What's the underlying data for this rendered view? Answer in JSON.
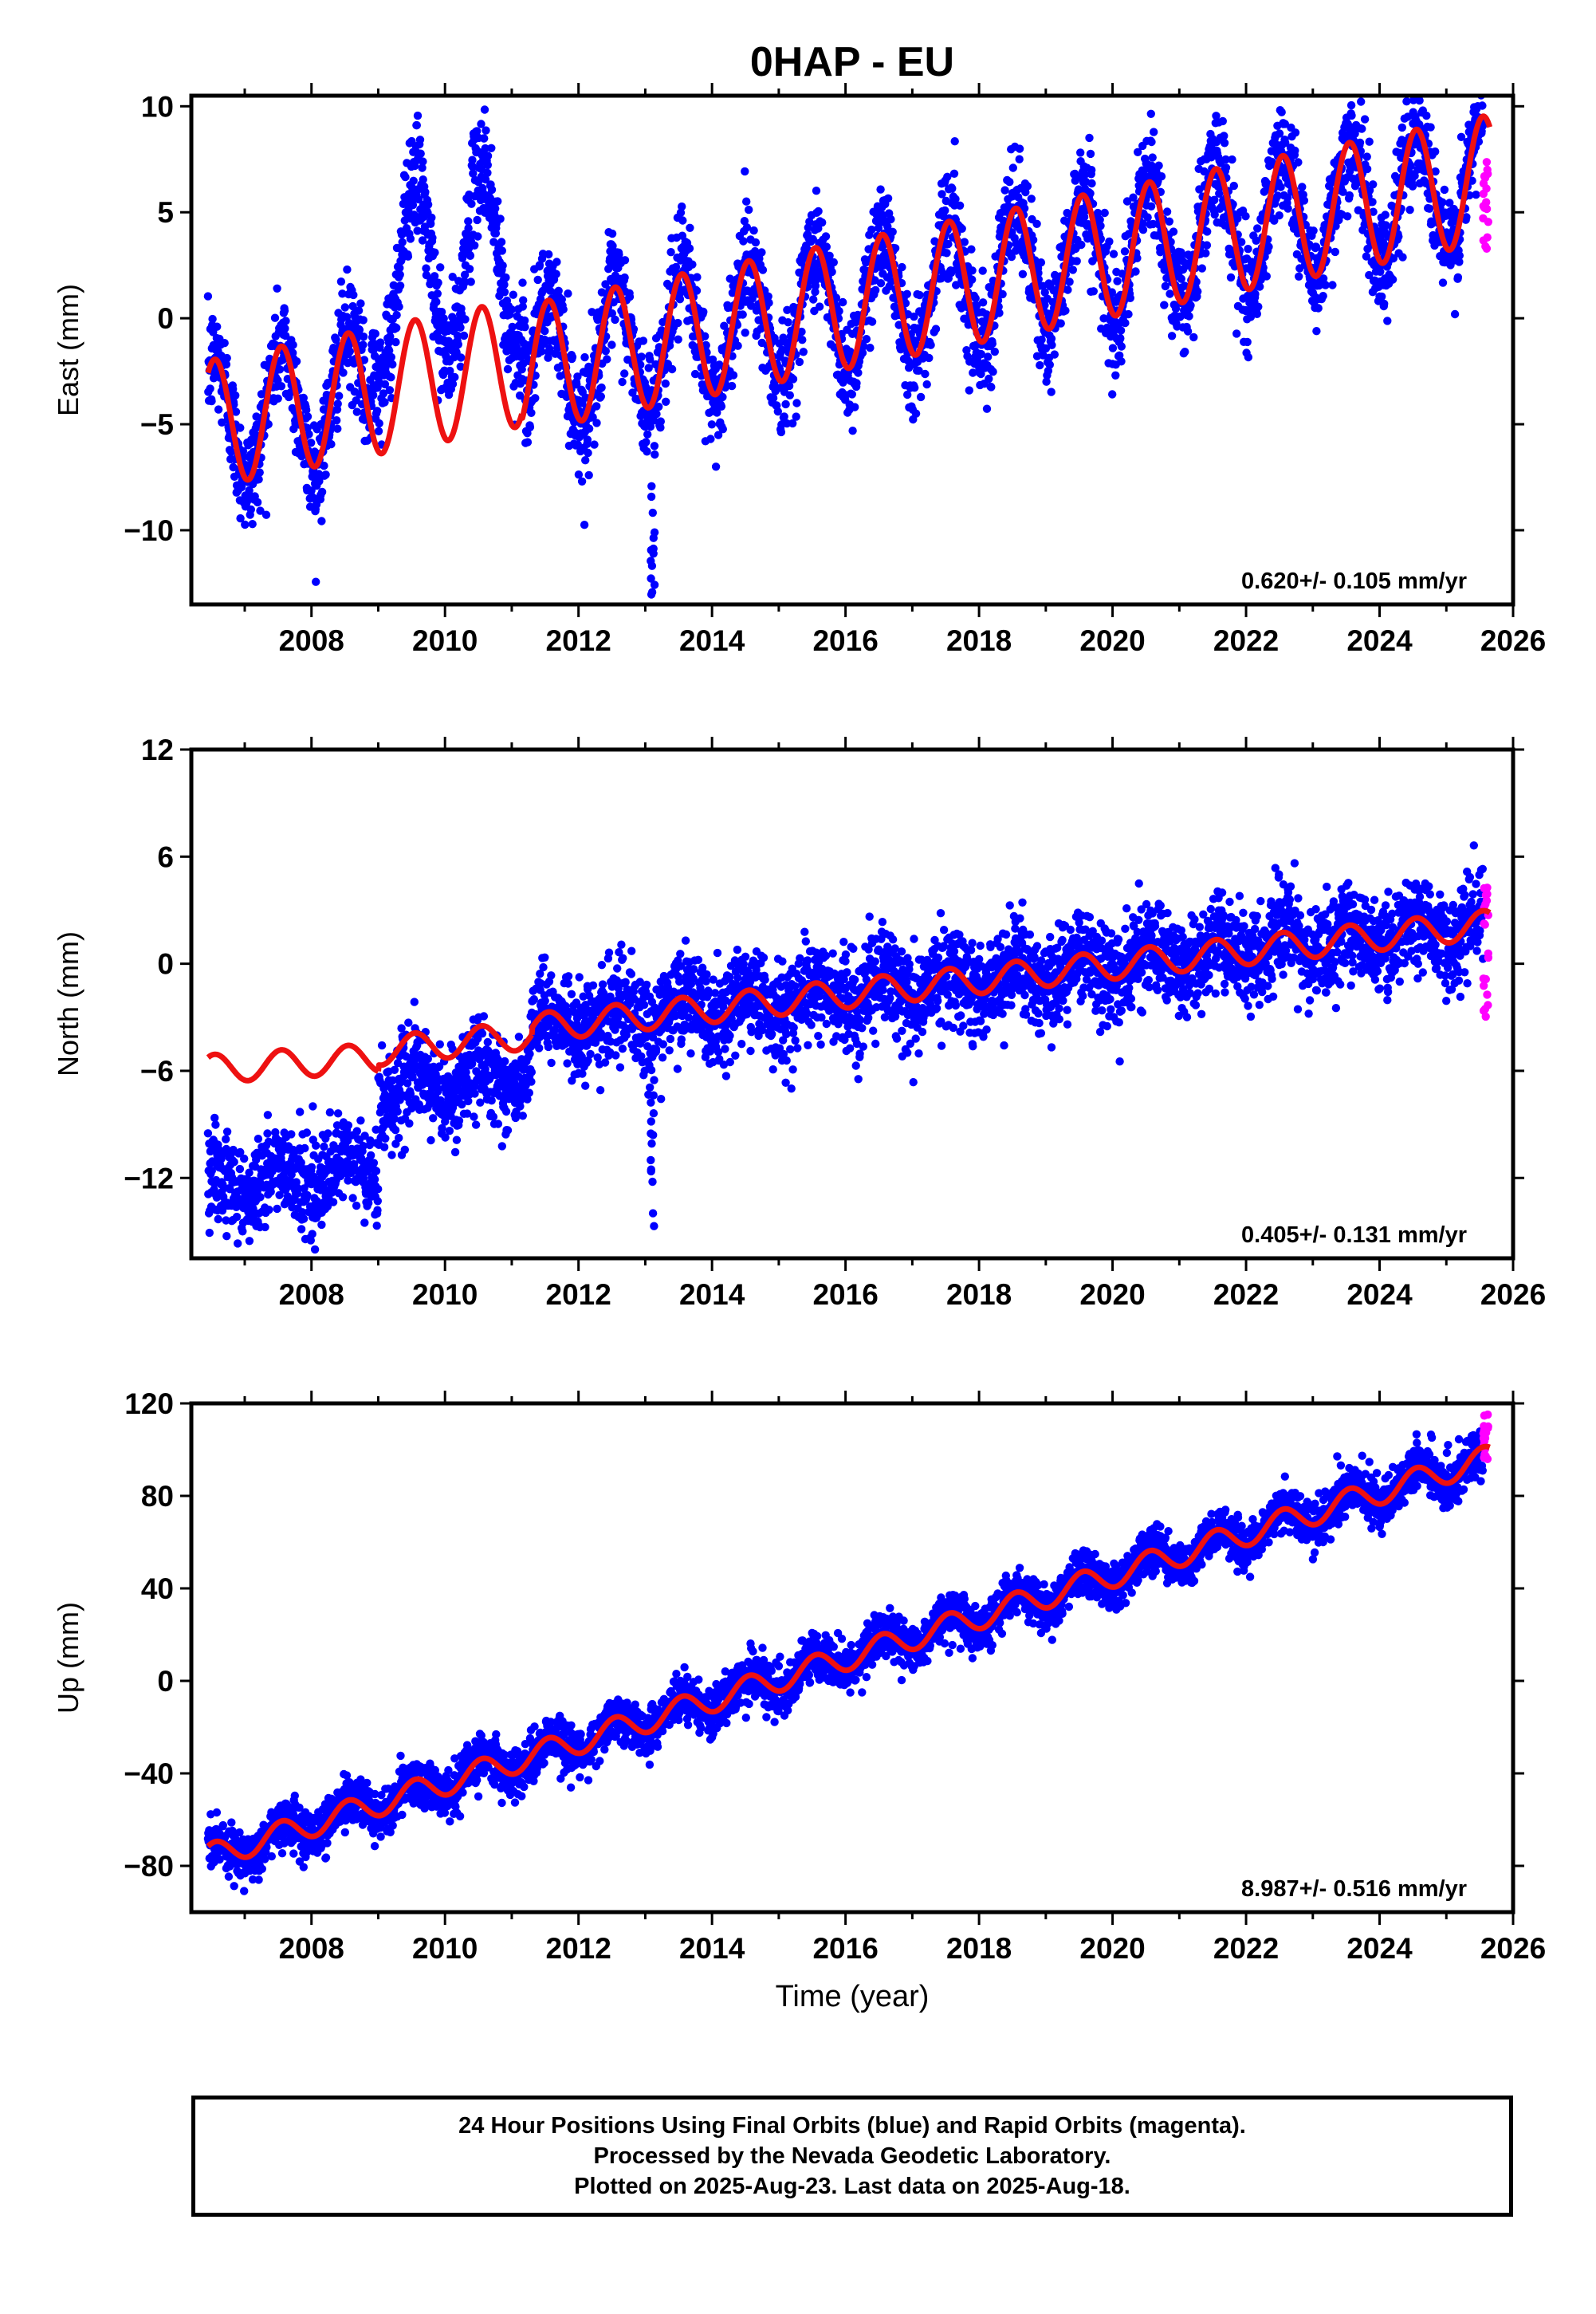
{
  "title": "0HAP - EU",
  "footer": {
    "line1": "24 Hour Positions Using Final Orbits (blue) and Rapid Orbits (magenta).",
    "line2": "Processed by the Nevada Geodetic Laboratory.",
    "line3": "Plotted on 2025-Aug-23. Last data on 2025-Aug-18."
  },
  "colors": {
    "final_orbits": "#0000ff",
    "rapid_orbits": "#ff00ff",
    "model_fit": "#ee1111",
    "frame": "#000000"
  },
  "chart_data": [
    {
      "type": "scatter",
      "id": "east",
      "ylabel": "East (mm)",
      "xlabel": "",
      "xlim": [
        2006.2,
        2026.0
      ],
      "ylim": [
        -13.5,
        10.5
      ],
      "xticks": [
        2008,
        2010,
        2012,
        2014,
        2016,
        2018,
        2020,
        2022,
        2024,
        2026
      ],
      "yticks": [
        10,
        5,
        0,
        -5,
        -10
      ],
      "rate_label": "0.620+/- 0.105 mm/yr",
      "model": [
        {
          "x_start": 2006.45,
          "x_end": 2011.15,
          "offset_at_start": -5.0,
          "rate": 0.62,
          "amplitude": 3.0
        },
        {
          "x_start": 2011.15,
          "x_end": 2025.65,
          "offset_at_start": -2.4,
          "rate": 0.62,
          "amplitude": 3.0
        }
      ],
      "series": [
        {
          "name": "Final Orbits",
          "color": "#0000ff",
          "x_range": [
            2006.45,
            2025.55
          ],
          "scatter_sd": 1.3
        },
        {
          "name": "Rapid Orbits",
          "color": "#ff00ff",
          "x_range": [
            2025.55,
            2025.63
          ],
          "y_range": [
            3.0,
            8.0
          ]
        }
      ]
    },
    {
      "type": "scatter",
      "id": "north",
      "ylabel": "North (mm)",
      "xlabel": "",
      "xlim": [
        2006.2,
        2026.0
      ],
      "ylim": [
        -16.5,
        12.0
      ],
      "xticks": [
        2008,
        2010,
        2012,
        2014,
        2016,
        2018,
        2020,
        2022,
        2024,
        2026
      ],
      "yticks": [
        12,
        6,
        0,
        -6,
        -12
      ],
      "rate_label": "0.405+/- 0.131 mm/yr",
      "model": [
        {
          "x_start": 2006.45,
          "x_end": 2009.0,
          "offset_at_start": -5.9,
          "rate": 0.25,
          "amplitude": 0.8
        },
        {
          "x_start": 2009.0,
          "x_end": 2011.3,
          "offset_at_start": -4.9,
          "rate": 0.4,
          "amplitude": 0.8
        },
        {
          "x_start": 2011.3,
          "x_end": 2025.65,
          "offset_at_start": -3.6,
          "rate": 0.405,
          "amplitude": 0.8
        }
      ],
      "series": [
        {
          "name": "Final Orbits",
          "color": "#0000ff",
          "x_range": [
            2006.45,
            2025.55
          ],
          "scatter_sd": 1.3
        },
        {
          "name": "Rapid Orbits",
          "color": "#ff00ff",
          "x_range": [
            2025.55,
            2025.63
          ],
          "y_range": [
            -3.5,
            4.5
          ]
        }
      ]
    },
    {
      "type": "scatter",
      "id": "up",
      "ylabel": "Up (mm)",
      "xlabel": "Time (year)",
      "xlim": [
        2006.2,
        2026.0
      ],
      "ylim": [
        -100,
        120
      ],
      "xticks": [
        2008,
        2010,
        2012,
        2014,
        2016,
        2018,
        2020,
        2022,
        2024,
        2026
      ],
      "yticks": [
        120,
        80,
        40,
        0,
        -40,
        -80
      ],
      "rate_label": "8.987+/- 0.516 mm/yr",
      "model": [
        {
          "x_start": 2006.45,
          "x_end": 2025.65,
          "offset_at_start": -76.0,
          "rate": 8.987,
          "amplitude": 5.5
        }
      ],
      "series": [
        {
          "name": "Final Orbits",
          "color": "#0000ff",
          "x_range": [
            2006.45,
            2025.55
          ],
          "scatter_sd": 5.0
        },
        {
          "name": "Rapid Orbits",
          "color": "#ff00ff",
          "x_range": [
            2025.55,
            2025.63
          ],
          "y_range": [
            95,
            117
          ]
        }
      ]
    }
  ]
}
